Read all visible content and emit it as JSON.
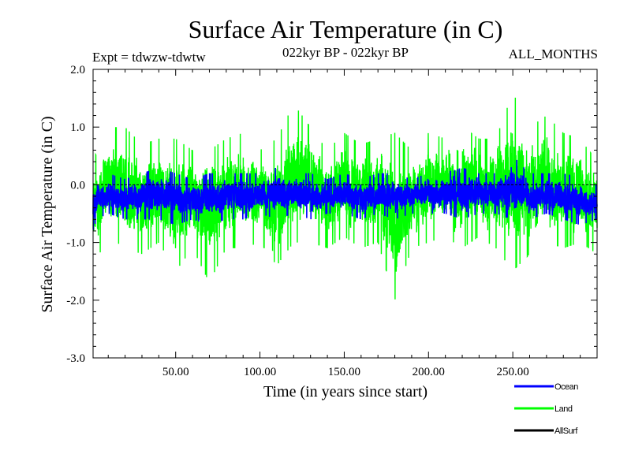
{
  "chart_data": {
    "type": "line",
    "title": "Surface Air Temperature (in C)",
    "experiment": "Expt = tdwzw-tdwtw",
    "period": "022kyr BP - 022kyr BP",
    "season": "ALL_MONTHS",
    "xlabel": "Time (in years since start)",
    "ylabel": "Surface Air Temperature (in C)",
    "xlim": [
      1,
      300
    ],
    "ylim": [
      -3.0,
      2.0
    ],
    "x_ticks": [
      50,
      100,
      150,
      200,
      250
    ],
    "x_tick_labels": [
      "50.00",
      "100.00",
      "150.00",
      "200.00",
      "250.00"
    ],
    "y_ticks": [
      2.0,
      1.0,
      0.0,
      -1.0,
      -2.0,
      -3.0
    ],
    "y_tick_labels": [
      "2.0",
      "1.0",
      "0.0",
      "-1.0",
      "-2.0",
      "-3.0"
    ],
    "zero_line": true,
    "legend_position": "bottom-right",
    "series": [
      {
        "name": "Land",
        "color": "#00ff00",
        "points_per_year": 12,
        "anchors_x": [
          1,
          3,
          10,
          20,
          30,
          40,
          50,
          60,
          70,
          80,
          90,
          100,
          110,
          120,
          130,
          140,
          150,
          160,
          170,
          180,
          190,
          200,
          210,
          220,
          230,
          240,
          250,
          260,
          270,
          280,
          290,
          300
        ],
        "anchors_upper": [
          0.6,
          0.5,
          1.0,
          1.0,
          0.7,
          0.8,
          0.8,
          0.6,
          0.6,
          0.8,
          0.9,
          0.6,
          0.8,
          1.4,
          1.0,
          0.6,
          0.9,
          0.7,
          0.8,
          0.9,
          0.6,
          0.9,
          0.8,
          1.0,
          0.8,
          0.8,
          1.6,
          1.0,
          1.2,
          0.9,
          0.8,
          0.4
        ],
        "anchors_lower": [
          -1.7,
          -1.3,
          -0.9,
          -1.1,
          -1.2,
          -1.0,
          -1.5,
          -1.1,
          -1.7,
          -1.1,
          -1.1,
          -1.0,
          -1.4,
          -1.0,
          -1.0,
          -1.1,
          -0.9,
          -1.1,
          -1.0,
          -2.0,
          -1.1,
          -1.0,
          -0.9,
          -1.1,
          -0.9,
          -1.1,
          -1.5,
          -1.2,
          -1.0,
          -1.1,
          -1.0,
          -1.2
        ]
      },
      {
        "name": "Ocean",
        "color": "#0000ff",
        "points_per_year": 12,
        "anchors_x": [
          1,
          3,
          10,
          20,
          30,
          40,
          50,
          60,
          70,
          80,
          90,
          100,
          110,
          120,
          130,
          140,
          150,
          160,
          170,
          180,
          190,
          200,
          210,
          220,
          230,
          240,
          250,
          260,
          270,
          280,
          290,
          300
        ],
        "anchors_upper": [
          0.0,
          0.1,
          0.2,
          0.1,
          0.2,
          0.3,
          0.2,
          0.1,
          0.2,
          0.2,
          0.2,
          0.2,
          0.3,
          0.2,
          0.2,
          0.1,
          0.2,
          0.1,
          0.2,
          0.2,
          0.1,
          0.2,
          0.2,
          0.3,
          0.2,
          0.2,
          0.5,
          0.2,
          0.2,
          0.2,
          0.1,
          0.0
        ],
        "anchors_lower": [
          -0.8,
          -0.6,
          -0.5,
          -0.6,
          -0.6,
          -0.6,
          -0.7,
          -0.6,
          -0.7,
          -0.6,
          -0.6,
          -0.5,
          -0.6,
          -0.5,
          -0.6,
          -0.5,
          -0.5,
          -0.6,
          -0.5,
          -0.6,
          -0.5,
          -0.5,
          -0.5,
          -0.6,
          -0.5,
          -0.5,
          -0.6,
          -0.6,
          -0.5,
          -0.6,
          -0.7,
          -0.6
        ]
      },
      {
        "name": "AllSurf",
        "color": "#000000",
        "points_per_year": 0,
        "anchors_x": [],
        "anchors_upper": [],
        "anchors_lower": []
      }
    ]
  }
}
